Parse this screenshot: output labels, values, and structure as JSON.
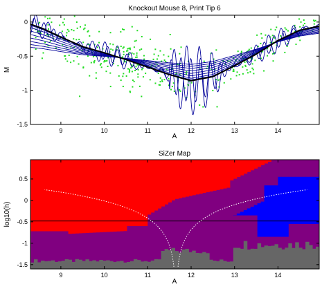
{
  "chart_data": [
    {
      "type": "scatter",
      "title": "Knockout Mouse 8, Print Tip 6",
      "xlabel": "A",
      "ylabel": "M",
      "xlim": [
        8.3,
        14.95
      ],
      "ylim": [
        -1.5,
        0.1
      ],
      "xticks": [
        9,
        10,
        11,
        12,
        13,
        14
      ],
      "yticks": [
        0,
        -0.5,
        -1,
        -1.5
      ],
      "grid": false,
      "scatter_color": "#22dd22",
      "curve_color": "#000099",
      "bold_curve_color": "#000000",
      "curves": [
        {
          "name": "",
          "x": [
            8.3,
            8.6,
            9.0,
            9.5,
            10.0,
            10.5,
            11.0,
            11.5,
            12.0,
            12.5,
            13.0,
            13.5,
            14.0,
            14.5,
            14.95
          ],
          "y": [
            -0.03,
            -0.1,
            -0.22,
            -0.36,
            -0.45,
            -0.55,
            -0.66,
            -0.77,
            -0.86,
            -0.8,
            -0.64,
            -0.47,
            -0.27,
            -0.12,
            -0.06
          ]
        }
      ]
    },
    {
      "type": "heatmap",
      "title": "SiZer Map",
      "xlabel": "A",
      "ylabel": "log10(h)",
      "xlim": [
        8.3,
        14.95
      ],
      "ylim": [
        -1.6,
        0.95
      ],
      "xticks": [
        9,
        10,
        11,
        12,
        13,
        14
      ],
      "yticks": [
        0.5,
        0,
        -0.5,
        -1,
        -1.5
      ],
      "legend": [],
      "colors": {
        "significant_increase": "#0000ff",
        "significant_decrease": "#ff0000",
        "not_significant": "#800080",
        "insufficient_data": "#666666"
      },
      "reference_line_log10h": -0.48
    }
  ]
}
